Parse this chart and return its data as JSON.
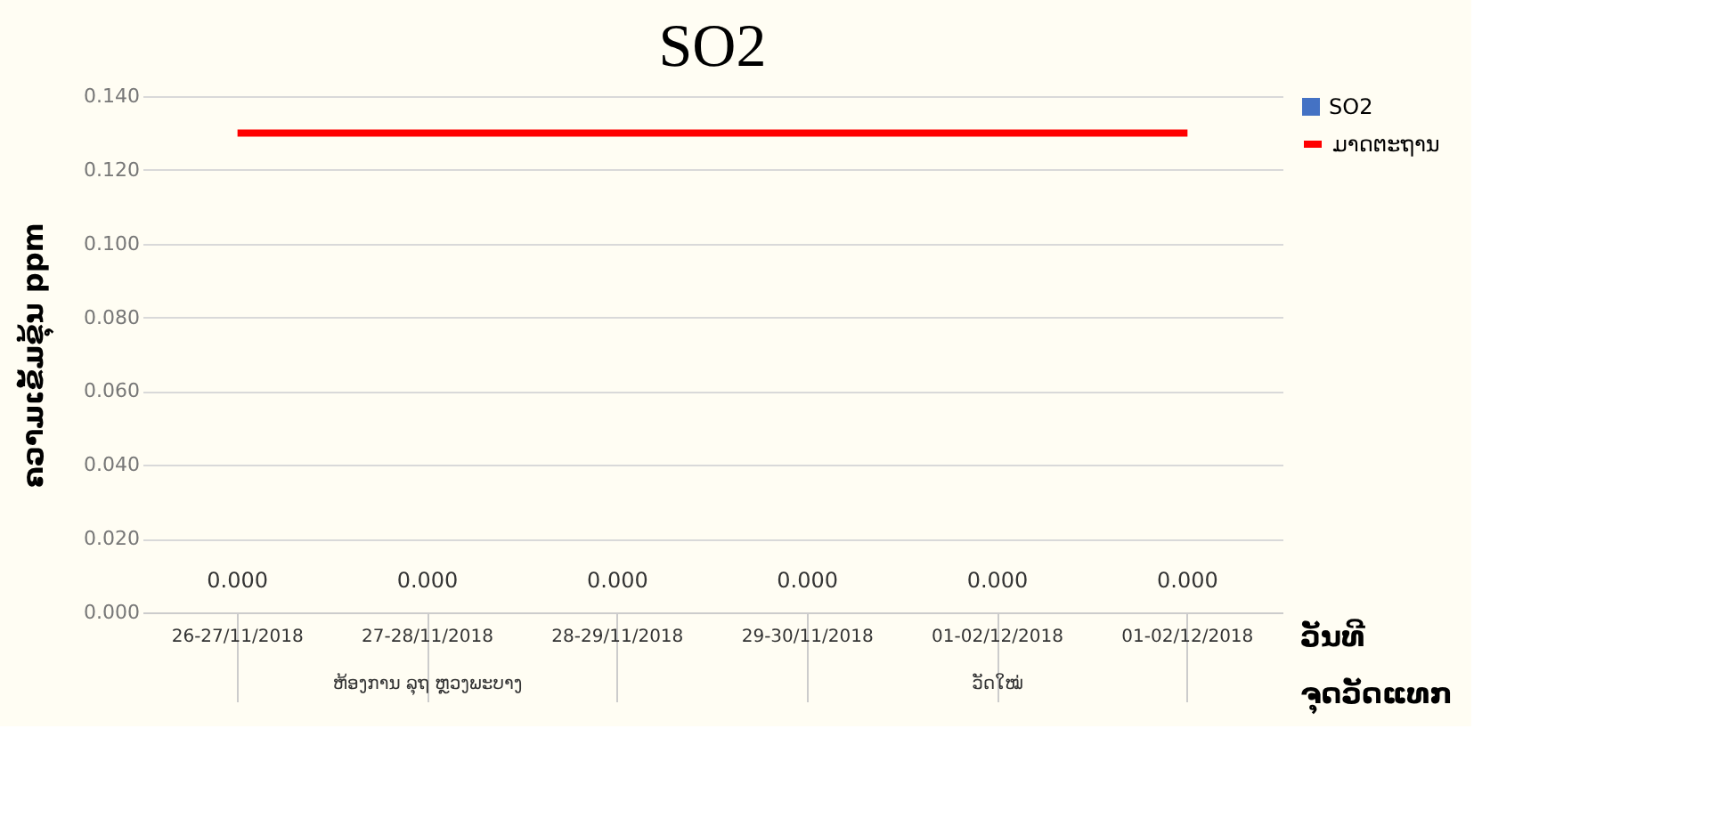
{
  "chart_data": {
    "type": "bar",
    "title": "SO2",
    "xlabel": "ວັນທີ\nຈຸດວັດແທກ",
    "ylabel": "ຄວາມເຂັ້ມຂຸ້ນ ppm",
    "categories": [
      "26-27/11/2018",
      "27-28/11/2018",
      "28-29/11/2018",
      "29-30/11/2018",
      "01-02/12/2018",
      "01-02/12/2018"
    ],
    "series": [
      {
        "name": "SO2",
        "color": "#4472c4",
        "values": [
          0,
          0,
          0,
          0,
          0,
          0
        ],
        "value_labels": [
          "0.000",
          "0.000",
          "0.000",
          "0.000",
          "0.000",
          "0.000"
        ]
      },
      {
        "name": "ມາດຕະຖານ",
        "type": "line",
        "color": "#ff0000",
        "values": [
          0.13,
          0.13,
          0.13,
          0.13,
          0.13,
          0.13
        ]
      }
    ],
    "annotations": [
      {
        "text": "ຫ້ອງການ ລຸຖ ຫຼວງພະບາງ",
        "x": "27-28/11/2018"
      },
      {
        "text": "ວັດໃໝ່",
        "x": "01-02/12/2018"
      }
    ],
    "ylim": [
      0,
      0.14
    ],
    "yticks": [
      {
        "value": 0,
        "label": "0.000"
      },
      {
        "value": 0.02,
        "label": "0.020"
      },
      {
        "value": 0.04,
        "label": "0.040"
      },
      {
        "value": 0.06,
        "label": "0.060"
      },
      {
        "value": 0.08,
        "label": "0.080"
      },
      {
        "value": 0.1,
        "label": "0.100"
      },
      {
        "value": 0.12,
        "label": "0.120"
      },
      {
        "value": 0.14,
        "label": "0.140"
      }
    ],
    "grid": "y",
    "legend": "right"
  }
}
